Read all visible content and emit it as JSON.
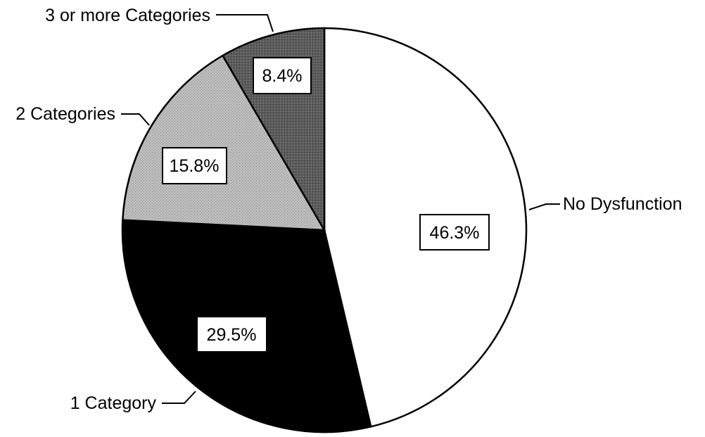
{
  "chart_data": {
    "type": "pie",
    "title": "",
    "slices": [
      {
        "label": "No Dysfunction",
        "value": 46.3,
        "value_label": "46.3%",
        "color": "#ffffff",
        "pattern": "none"
      },
      {
        "label": "1 Category",
        "value": 29.5,
        "value_label": "29.5%",
        "color": "#000000",
        "pattern": "none"
      },
      {
        "label": "2 Categories",
        "value": 15.8,
        "value_label": "15.8%",
        "color": "#b8b8b8",
        "pattern": "light-stipple"
      },
      {
        "label": "3 or more Categories",
        "value": 8.4,
        "value_label": "8.4%",
        "color": "#5a5a5a",
        "pattern": "dark-stipple"
      }
    ],
    "start": "12 o'clock",
    "direction": "clockwise",
    "legend": "none"
  }
}
